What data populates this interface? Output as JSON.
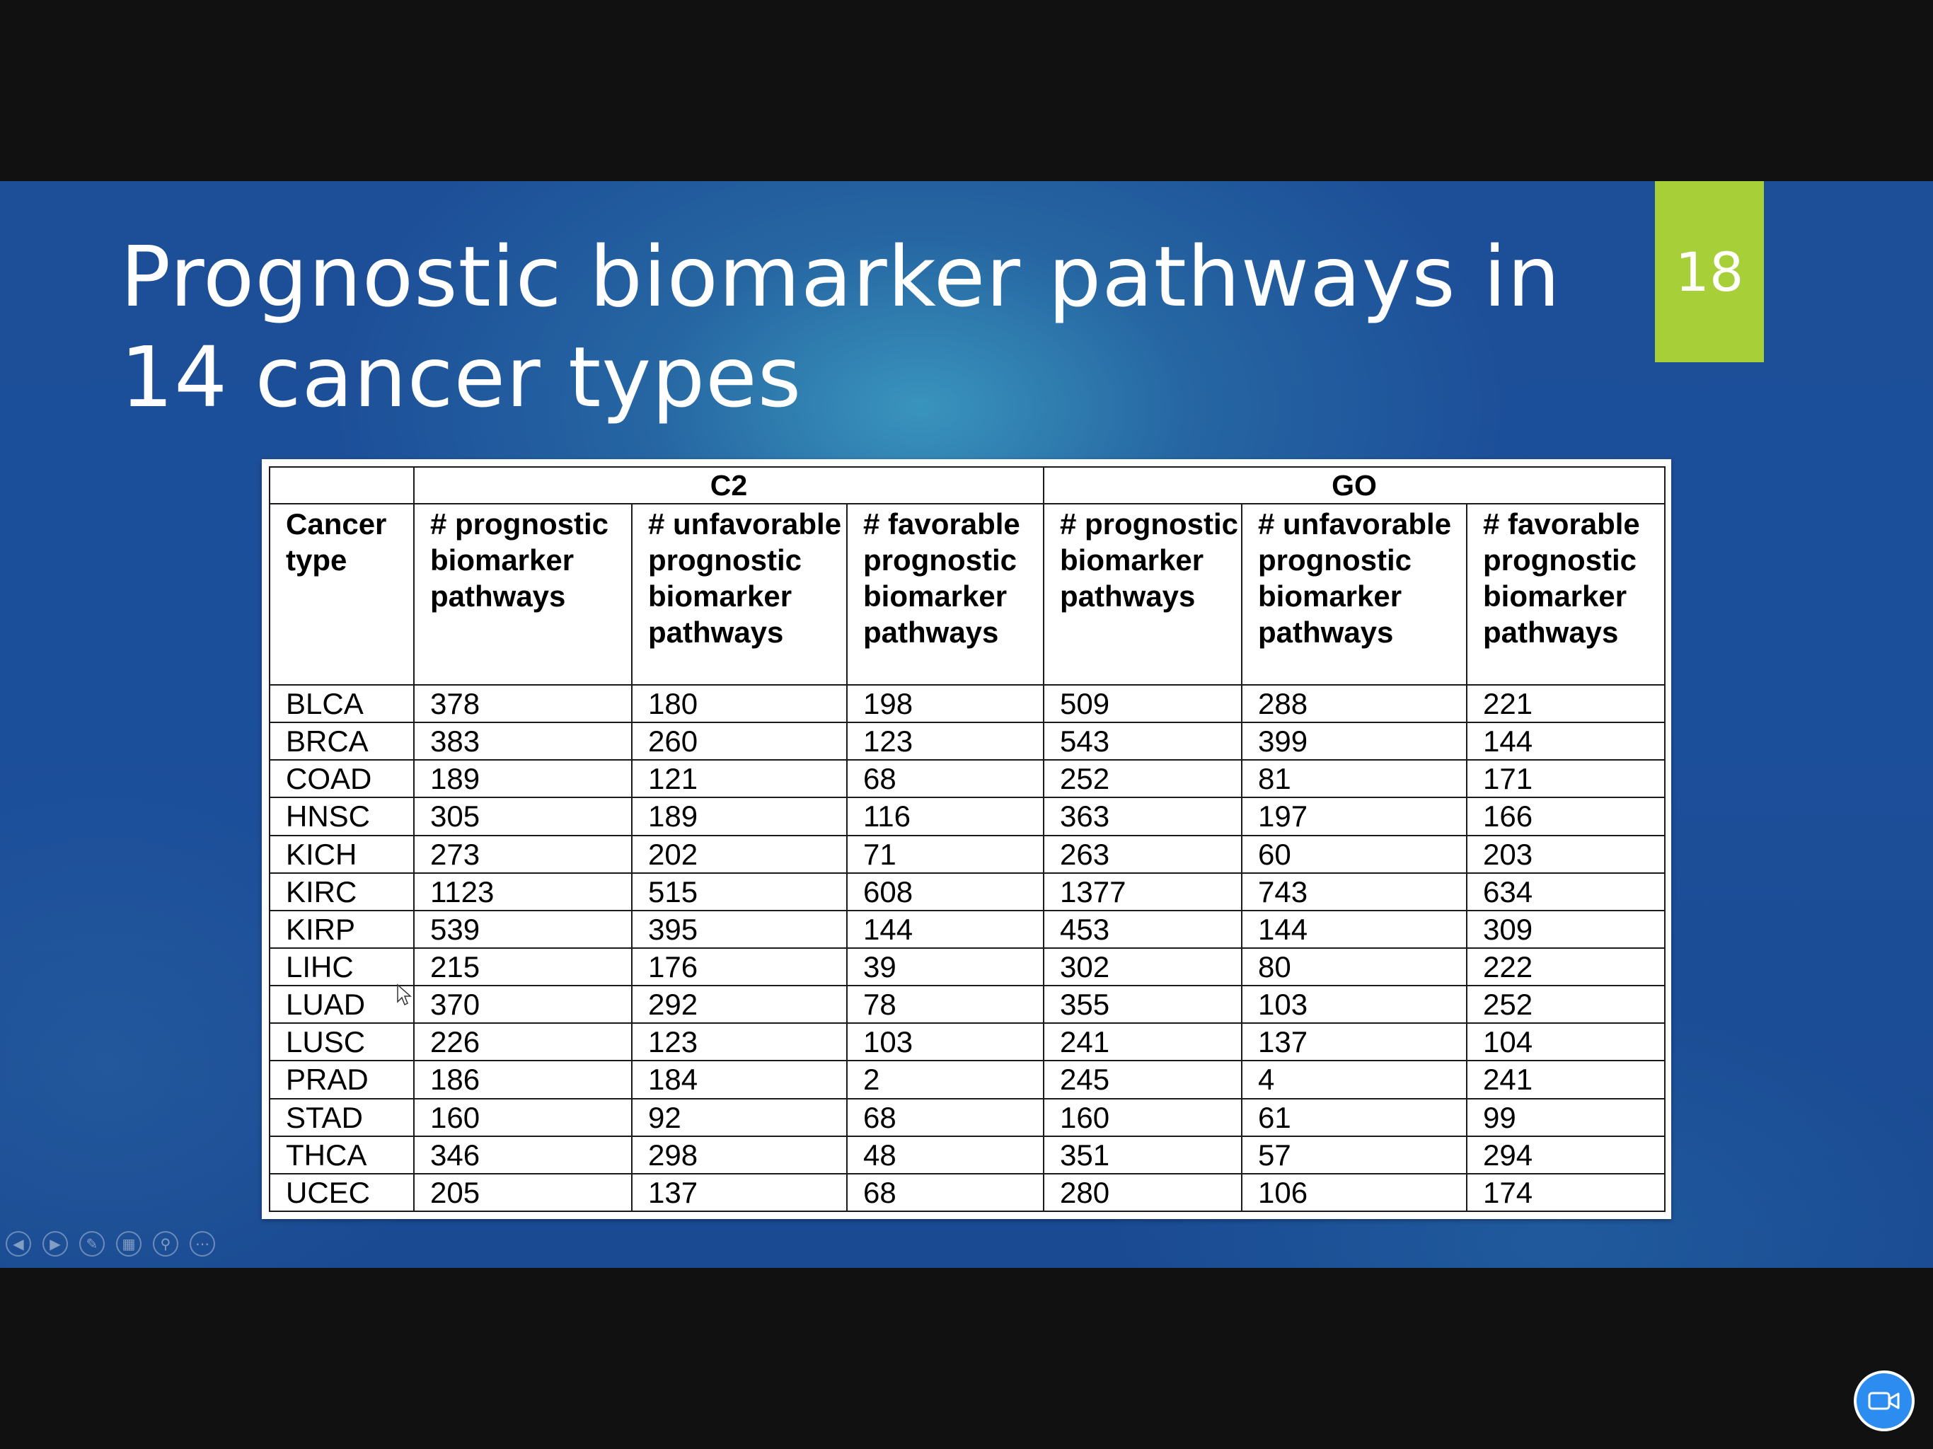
{
  "slide": {
    "title_line1": "Prognostic biomarker pathways in",
    "title_line2": "14 cancer types",
    "number": "18",
    "accent_color": "#a6cf38"
  },
  "table": {
    "groups": [
      "C2",
      "GO"
    ],
    "headers": [
      "Cancer type",
      "# prognostic biomarker pathways",
      "# unfavorable prognostic biomarker pathways",
      "# favorable prognostic biomarker pathways",
      "# prognostic biomarker pathways",
      "# unfavorable prognostic biomarker pathways",
      "# favorable prognostic biomarker pathways"
    ],
    "rows": [
      [
        "BLCA",
        "378",
        "180",
        "198",
        "509",
        "288",
        "221"
      ],
      [
        "BRCA",
        "383",
        "260",
        "123",
        "543",
        "399",
        "144"
      ],
      [
        "COAD",
        "189",
        "121",
        "68",
        "252",
        "81",
        "171"
      ],
      [
        "HNSC",
        "305",
        "189",
        "116",
        "363",
        "197",
        "166"
      ],
      [
        "KICH",
        "273",
        "202",
        "71",
        "263",
        "60",
        "203"
      ],
      [
        "KIRC",
        "1123",
        "515",
        "608",
        "1377",
        "743",
        "634"
      ],
      [
        "KIRP",
        "539",
        "395",
        "144",
        "453",
        "144",
        "309"
      ],
      [
        "LIHC",
        "215",
        "176",
        "39",
        "302",
        "80",
        "222"
      ],
      [
        "LUAD",
        "370",
        "292",
        "78",
        "355",
        "103",
        "252"
      ],
      [
        "LUSC",
        "226",
        "123",
        "103",
        "241",
        "137",
        "104"
      ],
      [
        "PRAD",
        "186",
        "184",
        "2",
        "245",
        "4",
        "241"
      ],
      [
        "STAD",
        "160",
        "92",
        "68",
        "160",
        "61",
        "99"
      ],
      [
        "THCA",
        "346",
        "298",
        "48",
        "351",
        "57",
        "294"
      ],
      [
        "UCEC",
        "205",
        "137",
        "68",
        "280",
        "106",
        "174"
      ]
    ]
  },
  "controls": {
    "icons": [
      "previous-icon",
      "next-icon",
      "pen-icon",
      "slides-grid-icon",
      "zoom-icon",
      "more-icon"
    ]
  },
  "camera": {
    "icon": "video-camera-icon",
    "color": "#2d8cf0"
  }
}
